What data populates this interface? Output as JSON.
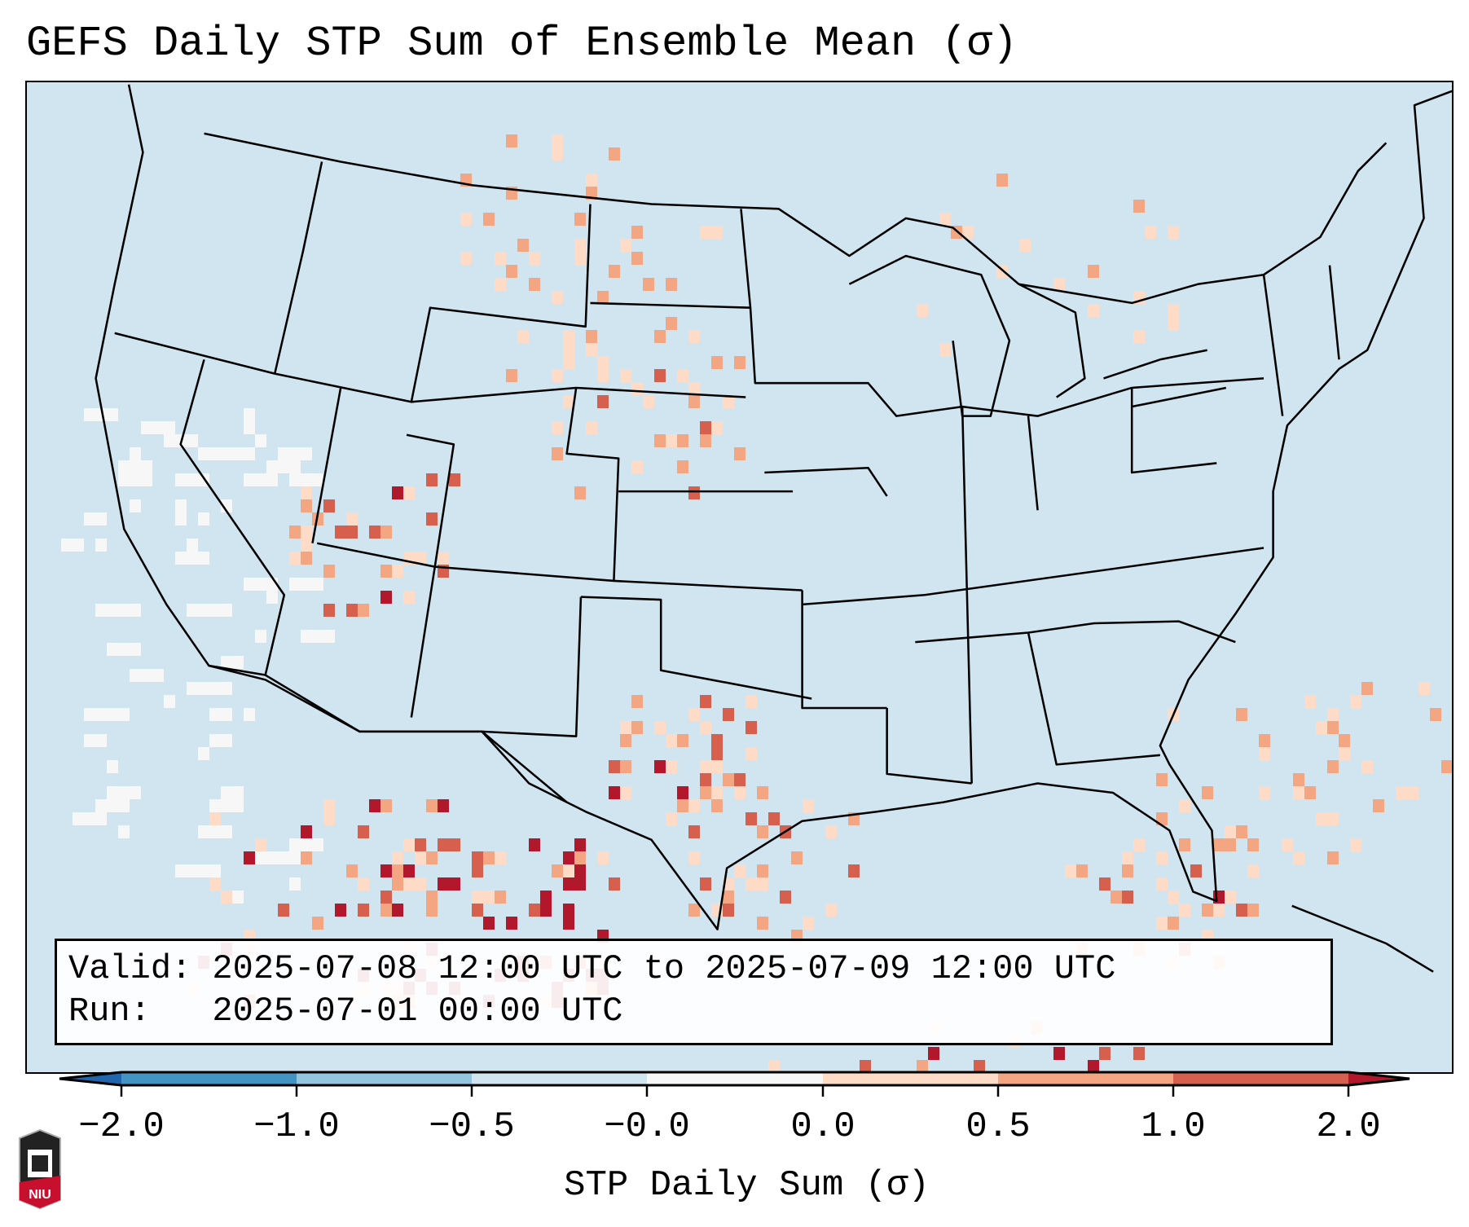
{
  "title": "GEFS Daily STP Sum of Ensemble Mean (σ)",
  "info": {
    "valid_line": "Valid: 2025-07-08 12:00 UTC to 2025-07-09 12:00 UTC",
    "run_line": "Run:   2025-07-01 00:00 UTC"
  },
  "logo_text": "NIU",
  "chart_data": {
    "type": "heatmap",
    "title": "GEFS Daily STP Sum of Ensemble Mean (σ)",
    "region": "Contiguous United States, northern Mexico, southern Canada",
    "colorbar": {
      "label": "STP Daily Sum (σ)",
      "ticks": [
        "−2.0",
        "−1.0",
        "−0.5",
        "−0.0",
        "0.0",
        "0.5",
        "1.0",
        "2.0"
      ],
      "extend": "both",
      "bins": [
        {
          "range": "< -2.0",
          "color": "#2166ac"
        },
        {
          "range": "-2.0 to -1.0",
          "color": "#4393c3"
        },
        {
          "range": "-1.0 to -0.5",
          "color": "#92c5de"
        },
        {
          "range": "-0.5 to -0.0",
          "color": "#d1e5f0"
        },
        {
          "range": "-0.0 to 0.0",
          "color": "#f7f7f7"
        },
        {
          "range": "0.0 to 0.5",
          "color": "#fddbc7"
        },
        {
          "range": "0.5 to 1.0",
          "color": "#f4a582"
        },
        {
          "range": "1.0 to 2.0",
          "color": "#d6604d"
        },
        {
          "range": "> 2.0",
          "color": "#b2182b"
        }
      ]
    }
  }
}
